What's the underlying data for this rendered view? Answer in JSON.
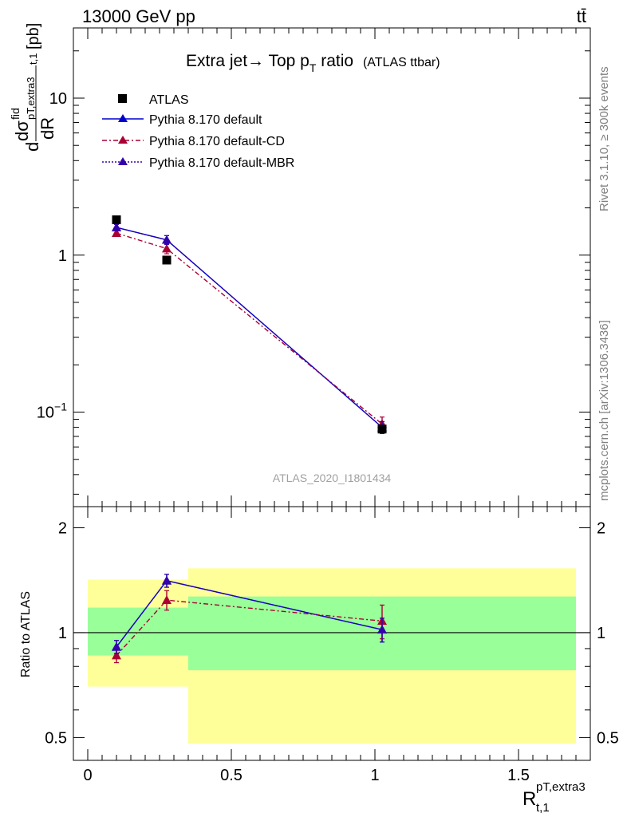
{
  "header": {
    "energy_label": "13000 GeV pp",
    "process_label": "tt̄",
    "side_label": "Rivet 3.1.10, ≥ 300k events",
    "side_label_2": "mcplots.cern.ch [arXiv:1306.3436]",
    "analysis_id": "ATLAS_2020_I1801434"
  },
  "colors": {
    "data": "#000000",
    "default": "#0000cc",
    "cd": "#aa0033",
    "mbr": "#3300aa",
    "band_yellow": "#ffff99",
    "band_green": "#99ff99",
    "side_text": "#808080",
    "analysis_text": "#a0a0a0"
  },
  "chart_data": [
    {
      "type": "scatter",
      "title_main": "Extra jet",
      "title_arrow": "→",
      "title_mid": " Top p",
      "title_sub": "T",
      "title_end": " ratio",
      "title_note": "(ATLAS ttbar)",
      "ylabel": {
        "d1": "d",
        "dsigma": "dσ",
        "sup": "fid",
        "sub": "pT,extra3",
        "dR": "dR",
        "sub2": "t,1",
        "unit": "[pb]"
      },
      "ylog": true,
      "ylim": [
        0.025,
        28
      ],
      "xlim": [
        -0.05,
        1.75
      ],
      "yticks": [
        {
          "value": 10,
          "base": "10",
          "exp": ""
        },
        {
          "value": 1,
          "base": "1",
          "exp": ""
        },
        {
          "value": 0.1,
          "base": "10",
          "exp": "−1"
        }
      ],
      "legend": [
        {
          "label": "ATLAS",
          "key": "data"
        },
        {
          "label": "Pythia 8.170 default",
          "key": "default"
        },
        {
          "label": "Pythia 8.170 default-CD",
          "key": "cd"
        },
        {
          "label": "Pythia 8.170 default-MBR",
          "key": "mbr"
        }
      ],
      "series": [
        {
          "name": "ATLAS",
          "key": "data",
          "x": [
            0.1,
            0.275,
            1.025
          ],
          "y": [
            1.68,
            0.93,
            0.078
          ],
          "xerr": [
            0.1,
            0.075,
            0.675
          ],
          "yerr": [
            0.03,
            0.02,
            0.003
          ]
        },
        {
          "name": "Pythia 8.170 default",
          "key": "default",
          "x": [
            0.1,
            0.275,
            1.025
          ],
          "y": [
            1.5,
            1.25,
            0.08
          ],
          "yerr": [
            0.07,
            0.08,
            0.007
          ]
        },
        {
          "name": "Pythia 8.170 default-CD",
          "key": "cd",
          "x": [
            0.1,
            0.275,
            1.025
          ],
          "y": [
            1.38,
            1.1,
            0.084
          ],
          "yerr": [
            0.06,
            0.08,
            0.009
          ]
        },
        {
          "name": "Pythia 8.170 default-MBR",
          "key": "mbr",
          "x": [
            0.1,
            0.275,
            1.025
          ],
          "y": [
            1.5,
            1.25,
            0.08
          ],
          "yerr": [
            0.07,
            0.08,
            0.007
          ]
        }
      ]
    },
    {
      "type": "scatter",
      "ylabel": "Ratio to ATLAS",
      "xlabel_main": "R",
      "xlabel_sup": "pT,extra3",
      "xlabel_sub": "t,1",
      "ylog": true,
      "ylim": [
        0.43,
        2.3
      ],
      "xlim": [
        -0.05,
        1.75
      ],
      "xticks": [
        {
          "value": 0,
          "label": "0"
        },
        {
          "value": 0.5,
          "label": "0.5"
        },
        {
          "value": 1,
          "label": "1"
        },
        {
          "value": 1.5,
          "label": "1.5"
        }
      ],
      "yticks": [
        {
          "value": 0.5,
          "label": "0.5"
        },
        {
          "value": 1,
          "label": "1"
        },
        {
          "value": 2,
          "label": "2"
        }
      ],
      "bands": [
        {
          "x0": 0.0,
          "x1": 0.35,
          "yellow": [
            0.7,
            1.42
          ],
          "green": [
            0.86,
            1.18
          ]
        },
        {
          "x0": 0.35,
          "x1": 1.7,
          "yellow": [
            0.48,
            1.53
          ],
          "green": [
            0.78,
            1.27
          ]
        }
      ],
      "series": [
        {
          "name": "Pythia 8.170 default",
          "key": "default",
          "x": [
            0.1,
            0.275,
            1.025
          ],
          "y": [
            0.91,
            1.41,
            1.02
          ],
          "yerr": [
            0.04,
            0.06,
            0.08
          ]
        },
        {
          "name": "Pythia 8.170 default-CD",
          "key": "cd",
          "x": [
            0.1,
            0.275,
            1.025
          ],
          "y": [
            0.86,
            1.24,
            1.08
          ],
          "yerr": [
            0.04,
            0.08,
            0.12
          ]
        },
        {
          "name": "Pythia 8.170 default-MBR",
          "key": "mbr",
          "x": [
            0.1,
            0.275,
            1.025
          ],
          "y": [
            0.91,
            1.41,
            1.02
          ],
          "yerr": [
            0.04,
            0.06,
            0.08
          ]
        }
      ]
    }
  ]
}
